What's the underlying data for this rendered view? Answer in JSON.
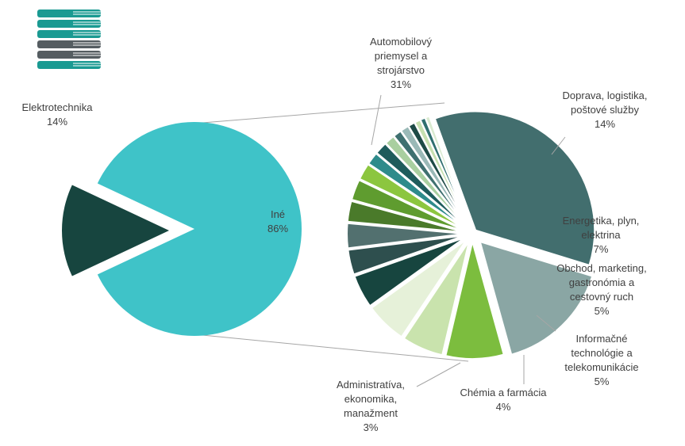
{
  "chart_data": {
    "type": "pie-of-pie",
    "main": {
      "slices": [
        {
          "label": "Iné",
          "value": 86,
          "value_label": "86%",
          "color": "#3fc3c8"
        },
        {
          "label": "Elektrotechnika",
          "value": 14,
          "value_label": "14%",
          "color": "#17453f"
        }
      ]
    },
    "secondary": {
      "slices": [
        {
          "label": "Automobilový priemysel a strojárstvo",
          "label_lines": [
            "Automobilový",
            "priemysel a",
            "strojárstvo"
          ],
          "value": 31,
          "value_label": "31%",
          "color": "#426e6e"
        },
        {
          "label": "Doprava, logistika, poštové služby",
          "label_lines": [
            "Doprava, logistika,",
            "poštové služby"
          ],
          "value": 14,
          "value_label": "14%",
          "color": "#8aa6a4"
        },
        {
          "label": "Energetika, plyn, elektrina",
          "label_lines": [
            "Energetika, plyn,",
            "elektrina"
          ],
          "value": 7,
          "value_label": "7%",
          "color": "#7cbd3e"
        },
        {
          "label": "Obchod, marketing, gastronómia a cestovný ruch",
          "label_lines": [
            "Obchod, marketing,",
            "gastronómia a",
            "cestovný ruch"
          ],
          "value": 5,
          "value_label": "5%",
          "color": "#c9e3ad"
        },
        {
          "label": "Informačné technológie a telekomunikácie",
          "label_lines": [
            "Informačné",
            "technológie a",
            "telekomunikácie"
          ],
          "value": 5,
          "value_label": "5%",
          "color": "#e6f1d9"
        },
        {
          "label": "Chémia a farmácia",
          "label_lines": [
            "Chémia a farmácia"
          ],
          "value": 4,
          "value_label": "4%",
          "color": "#17453f"
        },
        {
          "label": "",
          "value": 3,
          "color": "#2e4f4e"
        },
        {
          "label": "Administratíva, ekonomika, manažment",
          "label_lines": [
            "Administratíva,",
            "ekonomika,",
            "manažment"
          ],
          "value": 3,
          "value_label": "3%",
          "color": "#52706f"
        },
        {
          "label": "",
          "value": 2.5,
          "color": "#4a7a2a"
        },
        {
          "label": "",
          "value": 2.5,
          "color": "#5f9c2f"
        },
        {
          "label": "",
          "value": 2,
          "color": "#8cc63f"
        },
        {
          "label": "",
          "value": 1.5,
          "color": "#2e8b8b"
        },
        {
          "label": "",
          "value": 1.5,
          "color": "#1f5c5c"
        },
        {
          "label": "",
          "value": 1.2,
          "color": "#a9cfa0"
        },
        {
          "label": "",
          "value": 1,
          "color": "#3f7070"
        },
        {
          "label": "",
          "value": 1,
          "color": "#9ab9b7"
        },
        {
          "label": "",
          "value": 0.8,
          "color": "#1d4a46"
        },
        {
          "label": "",
          "value": 0.7,
          "color": "#c6e0b0"
        },
        {
          "label": "",
          "value": 0.6,
          "color": "#2f6f6f"
        },
        {
          "label": "",
          "value": 0.5,
          "color": "#d9ead0"
        }
      ]
    }
  },
  "logo": {
    "name": "books-logo-icon",
    "colors": [
      "#1a9a92",
      "#555d61"
    ]
  }
}
